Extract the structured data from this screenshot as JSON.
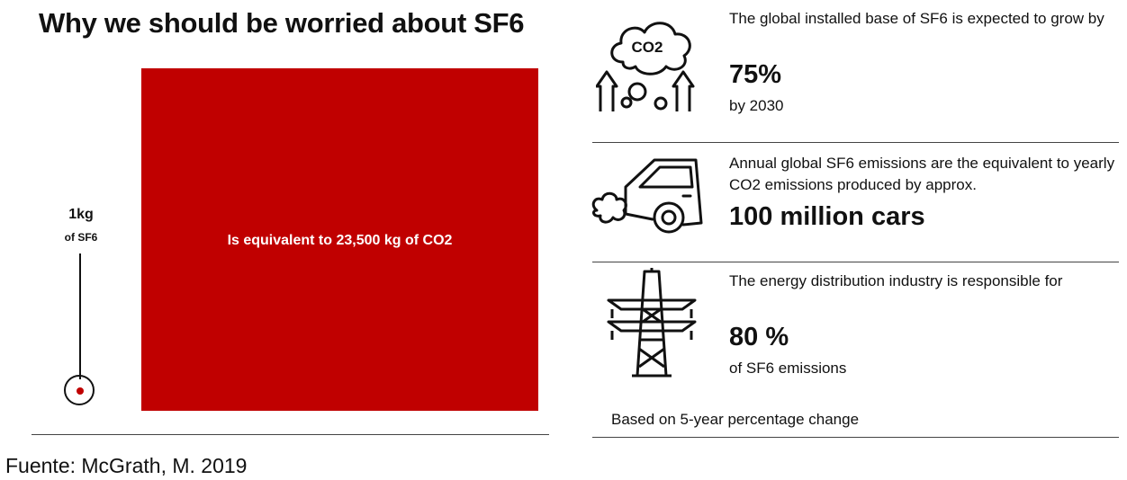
{
  "title": "Why we should be worried about SF6",
  "comparison": {
    "weight_label": "1kg",
    "weight_sub": "of SF6",
    "box_text": "Is equivalent to 23,500 kg of CO2",
    "colors": {
      "red": "#c00000"
    }
  },
  "stats": [
    {
      "icon": "co2-cloud-icon",
      "text": "The global installed base of SF6 is expected to grow by",
      "value": "75%",
      "sub": "by 2030"
    },
    {
      "icon": "car-emissions-icon",
      "text": "Annual global SF6 emissions are the equivalent to yearly CO2 emissions produced by approx.",
      "value": "100 million cars",
      "sub": ""
    },
    {
      "icon": "power-tower-icon",
      "text": "The energy distribution industry is responsible for",
      "value": "80 %",
      "sub": "of SF6 emissions"
    }
  ],
  "note": "Based on 5-year percentage change",
  "source": "Fuente: McGrath, M. 2019",
  "co2_label": "CO2"
}
